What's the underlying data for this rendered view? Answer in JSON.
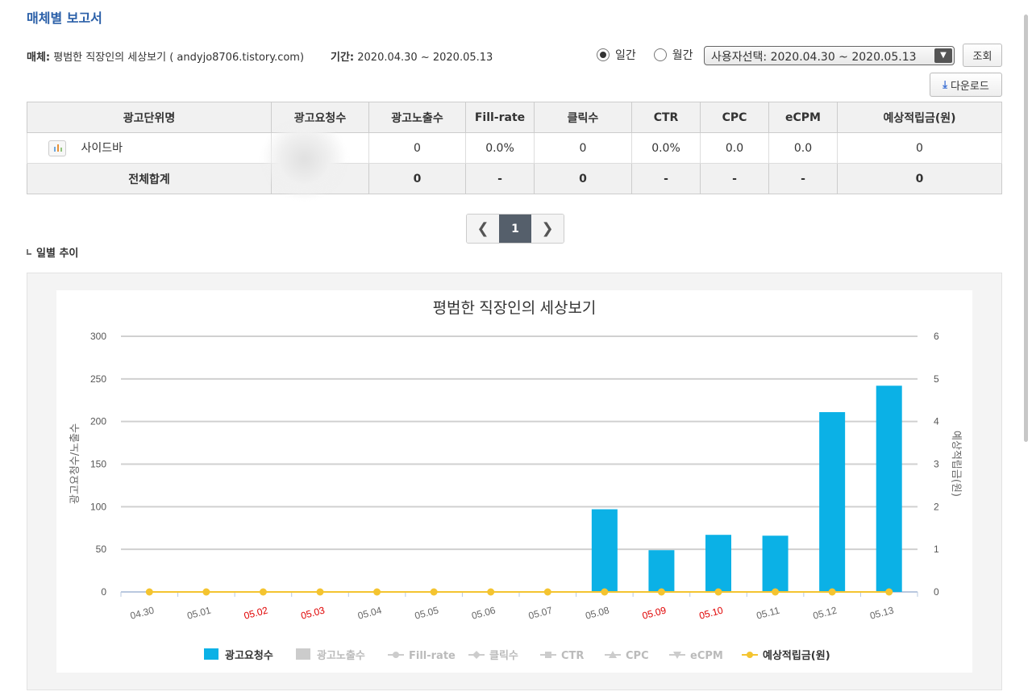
{
  "page": {
    "title": "매체별 보고서",
    "media_label": "매체:",
    "media_value": "평범한 직장인의 세상보기 ( andyjo8706.tistory.com)",
    "period_label": "기간:",
    "period_value": "2020.04.30 ~ 2020.05.13",
    "radio_daily": "일간",
    "radio_monthly": "월간",
    "select_value": "사용자선택: 2020.04.30 ~ 2020.05.13",
    "search_button": "조회",
    "download_button": "다운로드",
    "section_title": "일별 추이"
  },
  "table": {
    "headers": [
      "광고단위명",
      "광고요청수",
      "광고노출수",
      "Fill-rate",
      "클릭수",
      "CTR",
      "CPC",
      "eCPM",
      "예상적립금(원)"
    ],
    "rows": [
      [
        "사이드바",
        "",
        "0",
        "0.0%",
        "0",
        "0.0%",
        "0.0",
        "0.0",
        "0"
      ]
    ],
    "total": [
      "전체합계",
      "",
      "0",
      "-",
      "0",
      "-",
      "-",
      "-",
      "0"
    ]
  },
  "pager": {
    "current": "1"
  },
  "chart_data": {
    "type": "bar",
    "title": "평범한 직장인의 세상보기",
    "ylabel": "광고요청수/노출수",
    "y2label": "예상적립금(원)",
    "ylim": [
      0,
      300
    ],
    "y2lim": [
      0,
      6
    ],
    "yticks": [
      "300",
      "250",
      "200",
      "150",
      "100",
      "50",
      "0"
    ],
    "y2ticks": [
      "6",
      "5",
      "4",
      "3",
      "2",
      "1",
      "0"
    ],
    "categories": [
      "04.30",
      "05.01",
      "05.02",
      "05.03",
      "05.04",
      "05.05",
      "05.06",
      "05.07",
      "05.08",
      "05.09",
      "05.10",
      "05.11",
      "05.12",
      "05.13"
    ],
    "weekend_categories": [
      "05.02",
      "05.03",
      "05.09",
      "05.10"
    ],
    "series": [
      {
        "name": "광고요청수",
        "type": "bar",
        "color": "#0bb1e6",
        "values": [
          0,
          0,
          0,
          0,
          0,
          0,
          0,
          0,
          97,
          49,
          67,
          66,
          211,
          242
        ]
      },
      {
        "name": "예상적립금(원)",
        "type": "line",
        "color": "#f4c430",
        "values": [
          0,
          0,
          0,
          0,
          0,
          0,
          0,
          0,
          0,
          0,
          0,
          0,
          0,
          0
        ]
      }
    ],
    "legend": [
      {
        "name": "광고요청수",
        "marker": "square",
        "color": "#0bb1e6",
        "active": true
      },
      {
        "name": "광고노출수",
        "marker": "square",
        "color": "#cccccc",
        "active": false
      },
      {
        "name": "Fill-rate",
        "marker": "circle-line",
        "color": "#cccccc",
        "active": false
      },
      {
        "name": "클릭수",
        "marker": "diamond-line",
        "color": "#cccccc",
        "active": false
      },
      {
        "name": "CTR",
        "marker": "square-line",
        "color": "#cccccc",
        "active": false
      },
      {
        "name": "CPC",
        "marker": "triangle-line",
        "color": "#cccccc",
        "active": false
      },
      {
        "name": "eCPM",
        "marker": "triangle-down-line",
        "color": "#cccccc",
        "active": false
      },
      {
        "name": "예상적립금(원)",
        "marker": "circle-line",
        "color": "#f4c430",
        "active": true
      }
    ],
    "legend_position": "bottom",
    "grid": true
  }
}
